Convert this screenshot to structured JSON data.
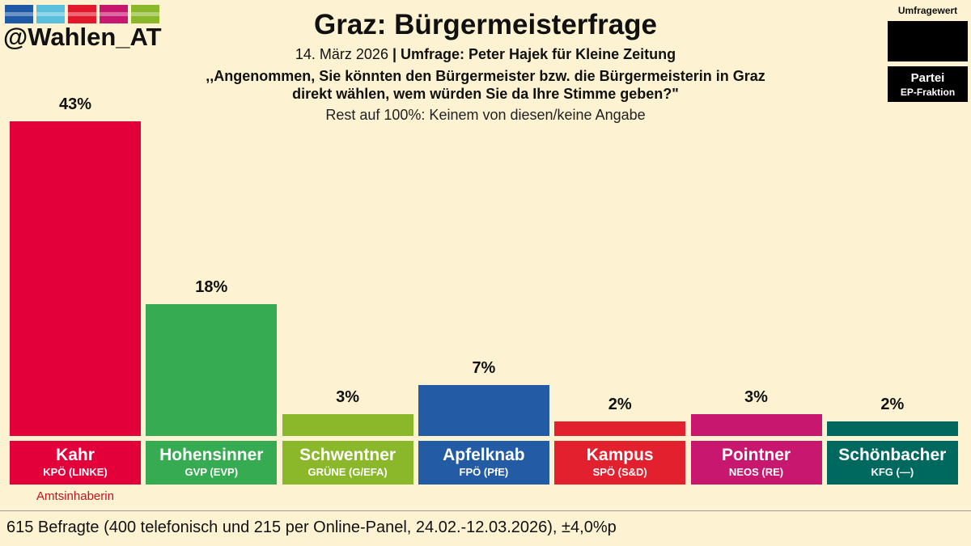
{
  "header": {
    "handle": "@Wahlen_AT",
    "title": "Graz: Bürgermeisterfrage",
    "date": "14. März 2026",
    "separator": " | ",
    "source": "Umfrage: Peter Hajek für Kleine Zeitung",
    "question_line1": ",,Angenommen, Sie könnten den Bürgermeister bzw. die Bürgermeisterin in Graz",
    "question_line2": "direkt wählen, wem würden Sie da Ihre Stimme geben?\"",
    "rest_note": "Rest auf 100%: Keinem von diesen/keine Angabe"
  },
  "flag_colors": [
    "#1f5aa6",
    "#5bc0de",
    "#e2182c",
    "#c8176e",
    "#8ab82a"
  ],
  "legend": {
    "title": "Umfragewert",
    "party_label": "Partei",
    "faction_label": "EP-Fraktion"
  },
  "chart_data": {
    "type": "bar",
    "title": "Graz: Bürgermeisterfrage",
    "categories": [
      "Kahr",
      "Hohensinner",
      "Schwentner",
      "Apfelknab",
      "Kampus",
      "Pointner",
      "Schönbacher"
    ],
    "parties": [
      "KPÖ (LINKE)",
      "GVP (EVP)",
      "GRÜNE (G/EFA)",
      "FPÖ (PfE)",
      "SPÖ (S&D)",
      "NEOS (RE)",
      "KFG (—)"
    ],
    "values": [
      43,
      18,
      3,
      7,
      2,
      3,
      2
    ],
    "value_labels": [
      "43%",
      "18%",
      "3%",
      "7%",
      "2%",
      "3%",
      "2%"
    ],
    "colors": [
      "#e3003a",
      "#36ab52",
      "#8ab82a",
      "#235ba4",
      "#e3202e",
      "#c8176e",
      "#00695f"
    ],
    "unit": "%",
    "ylim": [
      0,
      43
    ],
    "grid": false
  },
  "incumbent_note": "Amtsinhaberin",
  "footer": "615 Befragte (400 telefonisch und 215 per Online-Panel, 24.02.-12.03.2026), ±4,0%p"
}
